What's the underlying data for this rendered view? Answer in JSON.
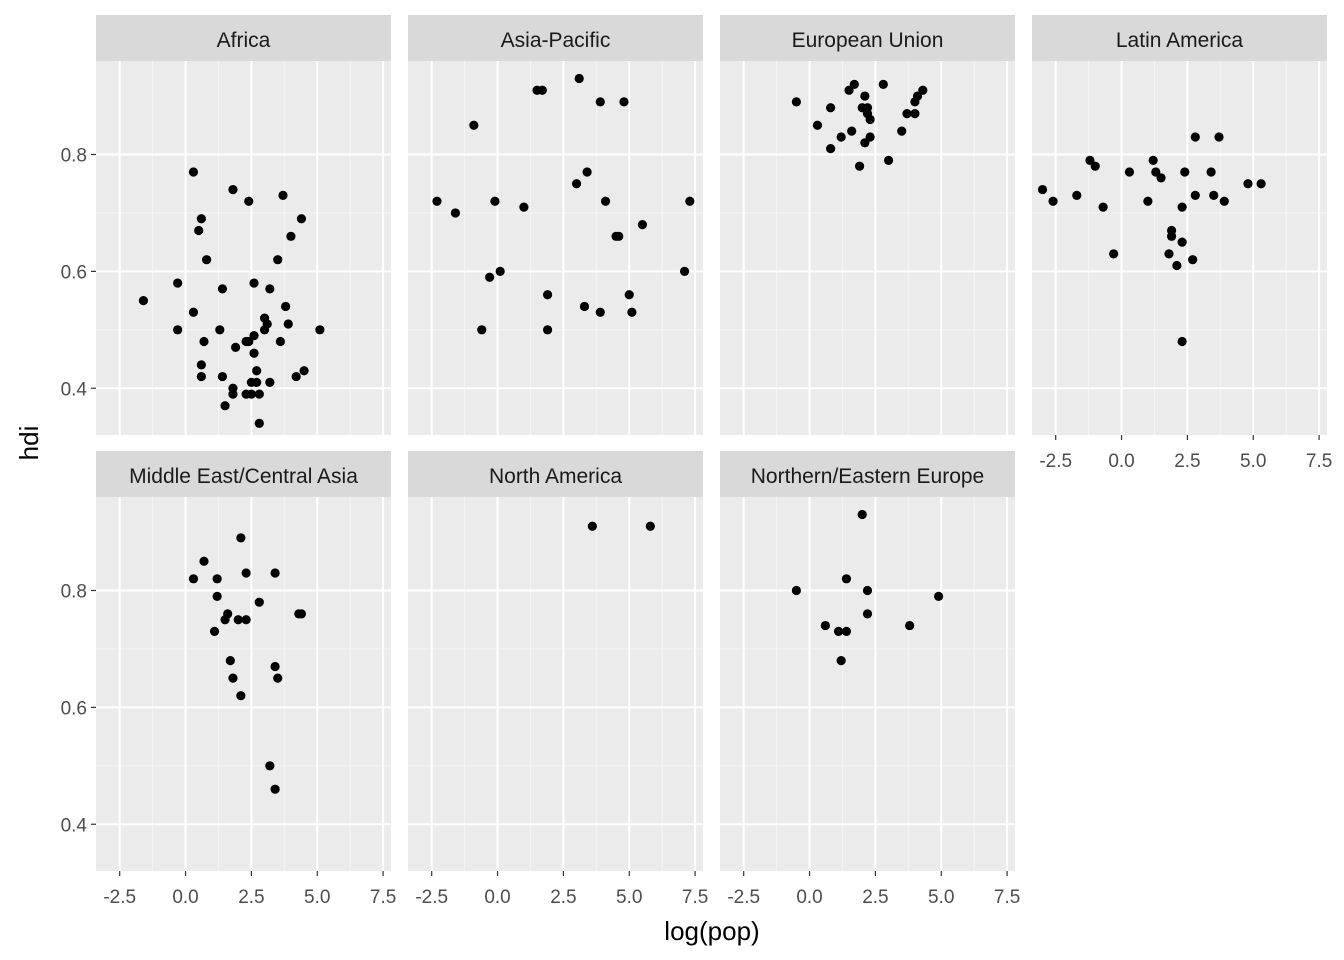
{
  "chart_data": {
    "type": "scatter",
    "title": "",
    "xlabel": "log(pop)",
    "ylabel": "hdi",
    "xlim": [
      -3.4,
      7.8
    ],
    "ylim": [
      0.32,
      0.96
    ],
    "x_ticks": [
      -2.5,
      0.0,
      2.5,
      5.0,
      7.5
    ],
    "x_tick_labels": [
      "-2.5",
      "0.0",
      "2.5",
      "5.0",
      "7.5"
    ],
    "y_ticks": [
      0.4,
      0.6,
      0.8
    ],
    "y_tick_labels": [
      "0.4",
      "0.6",
      "0.8"
    ],
    "grid": true,
    "facets": [
      {
        "name": "Africa",
        "points": [
          [
            -1.6,
            0.55
          ],
          [
            -0.3,
            0.58
          ],
          [
            -0.3,
            0.5
          ],
          [
            0.3,
            0.77
          ],
          [
            0.3,
            0.53
          ],
          [
            0.5,
            0.67
          ],
          [
            0.6,
            0.69
          ],
          [
            0.6,
            0.42
          ],
          [
            0.6,
            0.44
          ],
          [
            0.7,
            0.48
          ],
          [
            0.8,
            0.62
          ],
          [
            1.3,
            0.5
          ],
          [
            1.4,
            0.57
          ],
          [
            1.4,
            0.42
          ],
          [
            1.5,
            0.37
          ],
          [
            1.8,
            0.4
          ],
          [
            1.8,
            0.39
          ],
          [
            1.8,
            0.74
          ],
          [
            1.9,
            0.47
          ],
          [
            2.3,
            0.48
          ],
          [
            2.3,
            0.39
          ],
          [
            2.4,
            0.72
          ],
          [
            2.4,
            0.48
          ],
          [
            2.5,
            0.41
          ],
          [
            2.5,
            0.39
          ],
          [
            2.6,
            0.49
          ],
          [
            2.6,
            0.46
          ],
          [
            2.6,
            0.58
          ],
          [
            2.7,
            0.41
          ],
          [
            2.7,
            0.43
          ],
          [
            2.8,
            0.39
          ],
          [
            2.8,
            0.34
          ],
          [
            3.0,
            0.52
          ],
          [
            3.1,
            0.51
          ],
          [
            3.0,
            0.5
          ],
          [
            3.2,
            0.57
          ],
          [
            3.2,
            0.41
          ],
          [
            3.5,
            0.62
          ],
          [
            3.6,
            0.48
          ],
          [
            3.7,
            0.73
          ],
          [
            3.8,
            0.54
          ],
          [
            3.9,
            0.51
          ],
          [
            4.0,
            0.66
          ],
          [
            4.2,
            0.42
          ],
          [
            4.4,
            0.69
          ],
          [
            4.5,
            0.43
          ],
          [
            5.1,
            0.5
          ]
        ]
      },
      {
        "name": "Asia-Pacific",
        "points": [
          [
            -2.3,
            0.72
          ],
          [
            -1.6,
            0.7
          ],
          [
            -0.9,
            0.85
          ],
          [
            -0.6,
            0.5
          ],
          [
            -0.3,
            0.59
          ],
          [
            -0.1,
            0.72
          ],
          [
            0.1,
            0.6
          ],
          [
            1.0,
            0.71
          ],
          [
            1.5,
            0.91
          ],
          [
            1.7,
            0.91
          ],
          [
            1.9,
            0.56
          ],
          [
            1.9,
            0.5
          ],
          [
            3.0,
            0.75
          ],
          [
            3.1,
            0.93
          ],
          [
            3.3,
            0.54
          ],
          [
            3.4,
            0.77
          ],
          [
            3.9,
            0.89
          ],
          [
            3.9,
            0.53
          ],
          [
            4.1,
            0.72
          ],
          [
            4.5,
            0.66
          ],
          [
            4.6,
            0.66
          ],
          [
            4.8,
            0.89
          ],
          [
            5.0,
            0.56
          ],
          [
            5.1,
            0.53
          ],
          [
            5.5,
            0.68
          ],
          [
            7.1,
            0.6
          ],
          [
            7.3,
            0.72
          ]
        ]
      },
      {
        "name": "European Union",
        "points": [
          [
            -0.5,
            0.89
          ],
          [
            0.3,
            0.85
          ],
          [
            0.8,
            0.88
          ],
          [
            0.8,
            0.81
          ],
          [
            1.2,
            0.83
          ],
          [
            1.5,
            0.91
          ],
          [
            1.6,
            0.84
          ],
          [
            1.7,
            0.92
          ],
          [
            1.9,
            0.78
          ],
          [
            2.0,
            0.88
          ],
          [
            2.1,
            0.9
          ],
          [
            2.1,
            0.82
          ],
          [
            2.2,
            0.88
          ],
          [
            2.2,
            0.87
          ],
          [
            2.3,
            0.86
          ],
          [
            2.3,
            0.83
          ],
          [
            2.8,
            0.92
          ],
          [
            3.0,
            0.79
          ],
          [
            3.5,
            0.84
          ],
          [
            3.7,
            0.87
          ],
          [
            4.0,
            0.89
          ],
          [
            4.0,
            0.87
          ],
          [
            4.1,
            0.9
          ],
          [
            4.3,
            0.91
          ]
        ]
      },
      {
        "name": "Latin America",
        "points": [
          [
            -3.0,
            0.74
          ],
          [
            -2.6,
            0.72
          ],
          [
            -1.7,
            0.73
          ],
          [
            -1.2,
            0.79
          ],
          [
            -1.0,
            0.78
          ],
          [
            -0.7,
            0.71
          ],
          [
            -0.3,
            0.63
          ],
          [
            0.3,
            0.77
          ],
          [
            1.0,
            0.72
          ],
          [
            1.2,
            0.79
          ],
          [
            1.3,
            0.77
          ],
          [
            1.5,
            0.76
          ],
          [
            1.8,
            0.63
          ],
          [
            1.9,
            0.67
          ],
          [
            1.9,
            0.66
          ],
          [
            2.1,
            0.61
          ],
          [
            2.3,
            0.71
          ],
          [
            2.3,
            0.65
          ],
          [
            2.3,
            0.48
          ],
          [
            2.4,
            0.77
          ],
          [
            2.7,
            0.62
          ],
          [
            2.8,
            0.73
          ],
          [
            2.8,
            0.83
          ],
          [
            3.4,
            0.77
          ],
          [
            3.5,
            0.73
          ],
          [
            3.7,
            0.83
          ],
          [
            3.9,
            0.72
          ],
          [
            4.8,
            0.75
          ],
          [
            5.3,
            0.75
          ]
        ]
      },
      {
        "name": "Middle East/Central Asia",
        "points": [
          [
            0.3,
            0.82
          ],
          [
            0.7,
            0.85
          ],
          [
            1.1,
            0.73
          ],
          [
            1.2,
            0.82
          ],
          [
            1.2,
            0.79
          ],
          [
            1.5,
            0.75
          ],
          [
            1.6,
            0.76
          ],
          [
            1.7,
            0.68
          ],
          [
            1.8,
            0.65
          ],
          [
            2.0,
            0.75
          ],
          [
            2.1,
            0.89
          ],
          [
            2.1,
            0.62
          ],
          [
            2.3,
            0.83
          ],
          [
            2.3,
            0.75
          ],
          [
            2.8,
            0.78
          ],
          [
            3.2,
            0.5
          ],
          [
            3.4,
            0.83
          ],
          [
            3.4,
            0.67
          ],
          [
            3.5,
            0.65
          ],
          [
            3.4,
            0.46
          ],
          [
            4.3,
            0.76
          ],
          [
            4.4,
            0.76
          ]
        ]
      },
      {
        "name": "North America",
        "points": [
          [
            3.6,
            0.91
          ],
          [
            5.8,
            0.91
          ]
        ]
      },
      {
        "name": "Northern/Eastern Europe",
        "points": [
          [
            -0.5,
            0.8
          ],
          [
            0.6,
            0.74
          ],
          [
            1.1,
            0.73
          ],
          [
            1.2,
            0.68
          ],
          [
            1.4,
            0.73
          ],
          [
            1.4,
            0.82
          ],
          [
            2.0,
            0.93
          ],
          [
            2.2,
            0.8
          ],
          [
            2.2,
            0.76
          ],
          [
            3.8,
            0.74
          ],
          [
            4.9,
            0.79
          ]
        ]
      }
    ]
  }
}
